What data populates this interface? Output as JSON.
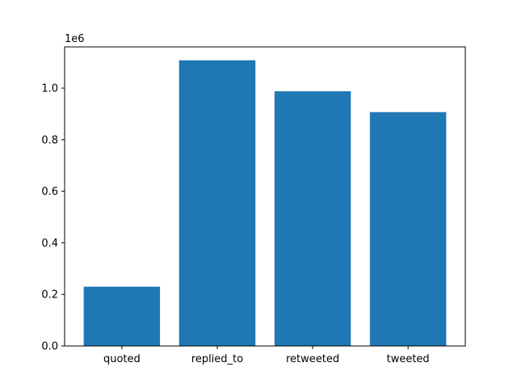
{
  "chart_data": {
    "type": "bar",
    "title": "",
    "xlabel": "",
    "ylabel": "",
    "categories": [
      "quoted",
      "replied_to",
      "retweeted",
      "tweeted"
    ],
    "values": [
      230000,
      1108000,
      988000,
      907000
    ],
    "ylim": [
      0,
      1160000
    ],
    "y_ticks": [
      0,
      200000,
      400000,
      600000,
      800000,
      1000000
    ],
    "y_tick_labels": [
      "0.0",
      "0.2",
      "0.4",
      "0.6",
      "0.8",
      "1.0"
    ],
    "y_offset_label": "1e6",
    "bar_color": "#1f77b4",
    "grid": false,
    "legend": "none"
  }
}
